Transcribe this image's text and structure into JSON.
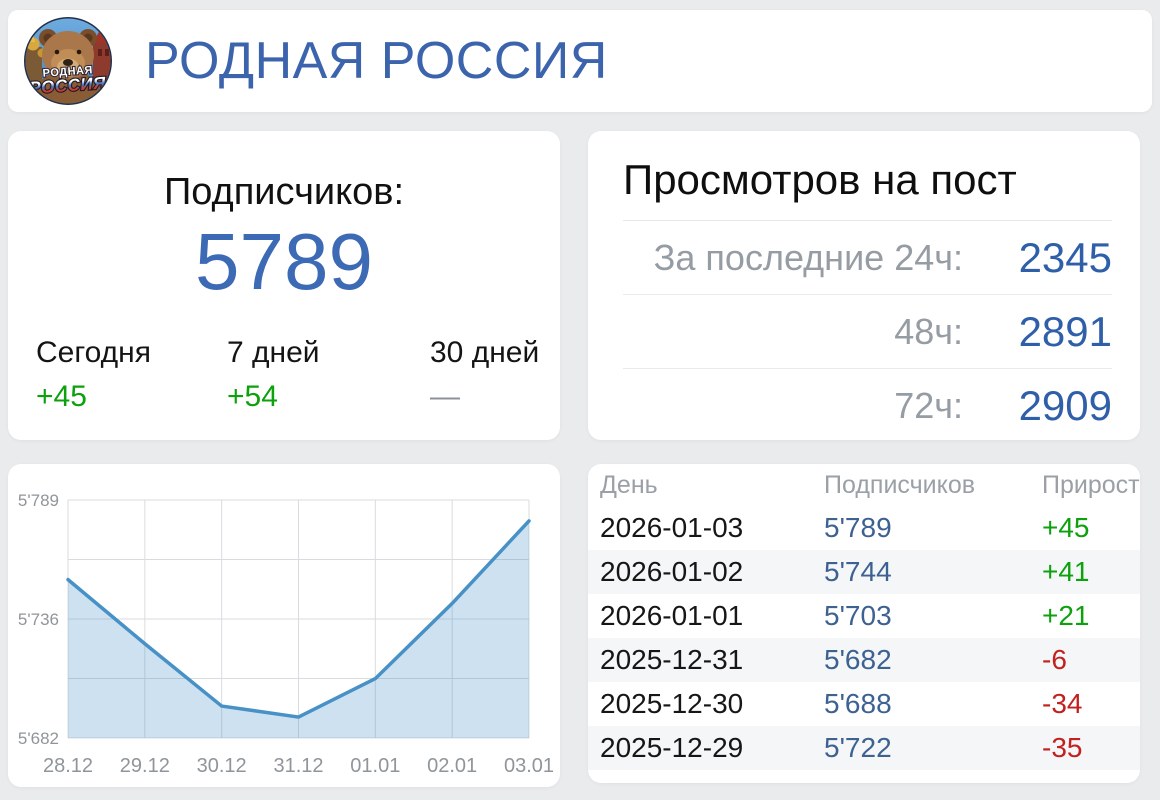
{
  "header": {
    "title": "РОДНАЯ РОССИЯ",
    "avatar_text_line1": "РОДНАЯ",
    "avatar_text_line2": "РОССИЯ"
  },
  "subscribers_card": {
    "title": "Подписчиков:",
    "count": "5789",
    "periods": [
      {
        "label": "Сегодня",
        "delta": "+45",
        "dir": "up"
      },
      {
        "label": "7 дней",
        "delta": "+54",
        "dir": "up"
      },
      {
        "label": "30 дней",
        "delta": "—",
        "dir": "none"
      }
    ]
  },
  "views_card": {
    "title": "Просмотров на пост",
    "rows": [
      {
        "label": "За последние 24ч:",
        "value": "2345"
      },
      {
        "label": "48ч:",
        "value": "2891"
      },
      {
        "label": "72ч:",
        "value": "2909"
      }
    ]
  },
  "chart_data": {
    "type": "area",
    "title": "",
    "x": [
      "28.12",
      "29.12",
      "30.12",
      "31.12",
      "01.01",
      "02.01",
      "03.01"
    ],
    "values": [
      5757,
      5722,
      5688,
      5682,
      5703,
      5744,
      5789
    ],
    "yticks": [
      "5'789",
      "5'736",
      "5'682"
    ],
    "ylim": [
      5682,
      5789
    ],
    "grid": true,
    "line_color": "#4791c6",
    "fill_color": "rgba(71,145,198,0.27)",
    "grid_color": "#d9dcde",
    "label_color": "#8f959a"
  },
  "table": {
    "headers": [
      "День",
      "Подписчиков",
      "Прирост"
    ],
    "rows": [
      {
        "day": "2026-01-03",
        "subscribers": "5'789",
        "delta": "+45",
        "dir": "up"
      },
      {
        "day": "2026-01-02",
        "subscribers": "5'744",
        "delta": "+41",
        "dir": "up"
      },
      {
        "day": "2026-01-01",
        "subscribers": "5'703",
        "delta": "+21",
        "dir": "up"
      },
      {
        "day": "2025-12-31",
        "subscribers": "5'682",
        "delta": "-6",
        "dir": "down"
      },
      {
        "day": "2025-12-30",
        "subscribers": "5'688",
        "delta": "-34",
        "dir": "down"
      },
      {
        "day": "2025-12-29",
        "subscribers": "5'722",
        "delta": "-35",
        "dir": "down"
      }
    ]
  },
  "colors": {
    "accent_blue": "#3c64ad",
    "number_blue": "#3d6ab5",
    "views_blue": "#2e5fa8",
    "table_blue": "#3d6191",
    "green": "#0da10d",
    "red": "#c32020",
    "gray_label": "#969ca3",
    "page_bg": "#e9ebed"
  }
}
